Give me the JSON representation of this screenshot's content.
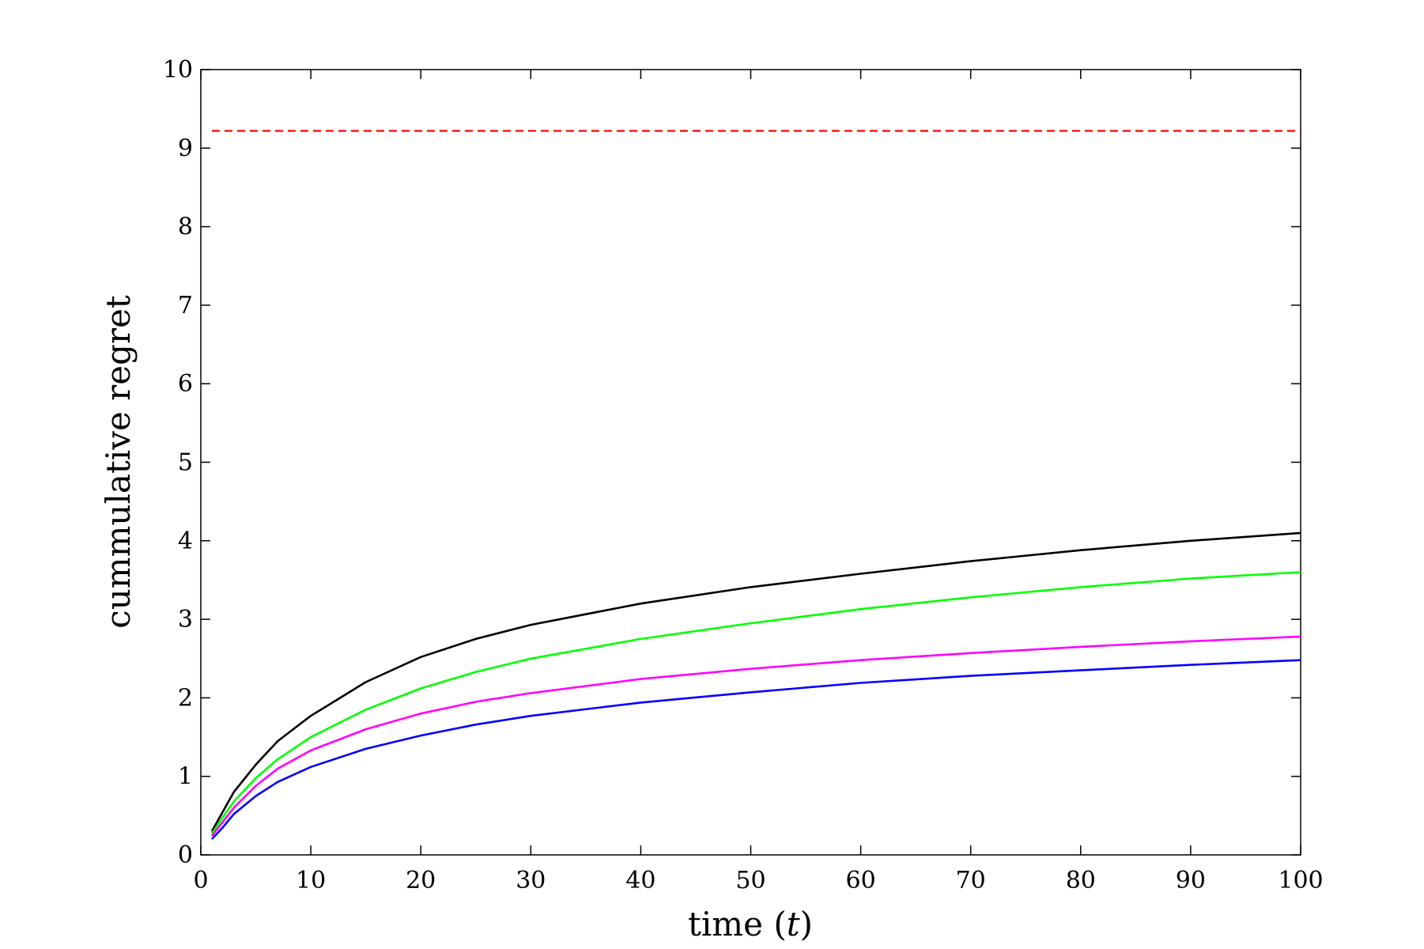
{
  "chart_data": {
    "type": "line",
    "xlabel": "time (t)",
    "ylabel": "cummulative regret",
    "xlim": [
      0,
      100
    ],
    "ylim": [
      0,
      10
    ],
    "xticks": [
      0,
      10,
      20,
      30,
      40,
      50,
      60,
      70,
      80,
      90,
      100
    ],
    "yticks": [
      0,
      1,
      2,
      3,
      4,
      5,
      6,
      7,
      8,
      9,
      10
    ],
    "grid": false,
    "series": [
      {
        "color": "#ff0000",
        "style": "dashed",
        "x": [
          1,
          100
        ],
        "y": [
          9.22,
          9.22
        ]
      },
      {
        "color": "#000000",
        "style": "solid",
        "x": [
          1,
          2,
          3,
          5,
          7,
          10,
          15,
          20,
          25,
          30,
          40,
          50,
          60,
          70,
          80,
          90,
          100
        ],
        "y": [
          0.3,
          0.55,
          0.8,
          1.15,
          1.45,
          1.77,
          2.2,
          2.52,
          2.75,
          2.93,
          3.2,
          3.41,
          3.58,
          3.74,
          3.88,
          4.0,
          4.1
        ]
      },
      {
        "color": "#00ff00",
        "style": "solid",
        "x": [
          1,
          2,
          3,
          5,
          7,
          10,
          15,
          20,
          25,
          30,
          40,
          50,
          60,
          70,
          80,
          90,
          100
        ],
        "y": [
          0.27,
          0.48,
          0.68,
          0.98,
          1.22,
          1.5,
          1.85,
          2.12,
          2.33,
          2.5,
          2.75,
          2.95,
          3.13,
          3.28,
          3.41,
          3.52,
          3.6
        ]
      },
      {
        "color": "#ff00ff",
        "style": "solid",
        "x": [
          1,
          2,
          3,
          5,
          7,
          10,
          15,
          20,
          25,
          30,
          40,
          50,
          60,
          70,
          80,
          90,
          100
        ],
        "y": [
          0.24,
          0.42,
          0.6,
          0.88,
          1.1,
          1.33,
          1.6,
          1.8,
          1.95,
          2.06,
          2.24,
          2.37,
          2.48,
          2.57,
          2.65,
          2.72,
          2.78
        ]
      },
      {
        "color": "#0000ff",
        "style": "solid",
        "x": [
          1,
          2,
          3,
          5,
          7,
          10,
          15,
          20,
          25,
          30,
          40,
          50,
          60,
          70,
          80,
          90,
          100
        ],
        "y": [
          0.2,
          0.35,
          0.52,
          0.75,
          0.93,
          1.12,
          1.35,
          1.52,
          1.66,
          1.77,
          1.94,
          2.07,
          2.19,
          2.28,
          2.35,
          2.42,
          2.48
        ]
      }
    ]
  }
}
